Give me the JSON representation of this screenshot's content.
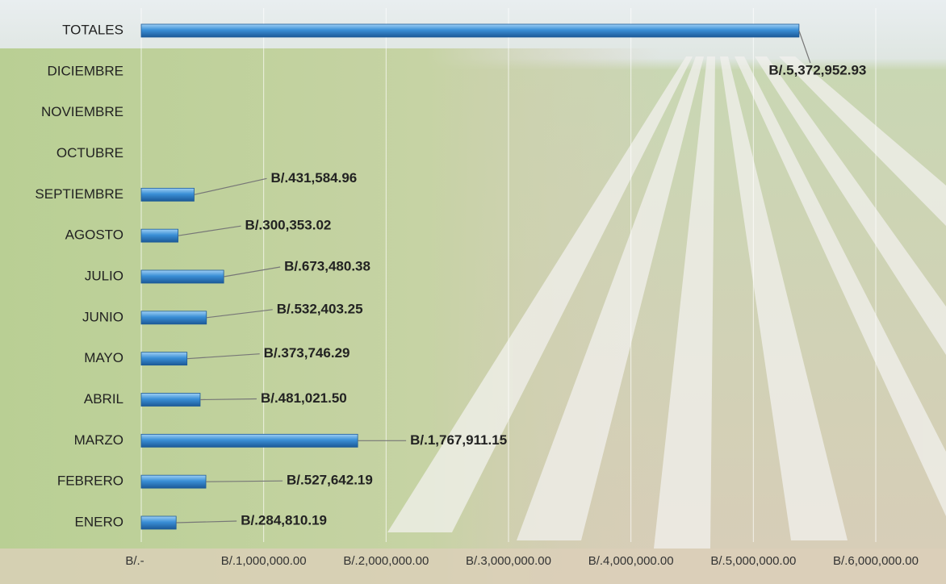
{
  "chart_data": {
    "type": "barh",
    "categories": [
      "ENERO",
      "FEBRERO",
      "MARZO",
      "ABRIL",
      "MAYO",
      "JUNIO",
      "JULIO",
      "AGOSTO",
      "SEPTIEMBRE",
      "OCTUBRE",
      "NOVIEMBRE",
      "DICIEMBRE",
      "TOTALES"
    ],
    "values": [
      284810.19,
      527642.19,
      1767911.15,
      481021.5,
      373746.29,
      532403.25,
      673480.38,
      300353.02,
      431584.96,
      null,
      null,
      null,
      5372952.93
    ],
    "value_labels": [
      "B/.284,810.19",
      "B/.527,642.19",
      "B/.1,767,911.15",
      "B/.481,021.50",
      "B/.373,746.29",
      "B/.532,403.25",
      "B/.673,480.38",
      "B/.300,353.02",
      "B/.431,584.96",
      null,
      null,
      null,
      "B/.5,372,952.93"
    ],
    "color": "#3a8fd6",
    "xlim": [
      0,
      6000000
    ],
    "xticks": [
      {
        "value": 0,
        "label": "B/.-"
      },
      {
        "value": 1000000,
        "label": "B/.1,000,000.00"
      },
      {
        "value": 2000000,
        "label": "B/.2,000,000.00"
      },
      {
        "value": 3000000,
        "label": "B/.3,000,000.00"
      },
      {
        "value": 4000000,
        "label": "B/.4,000,000.00"
      },
      {
        "value": 5000000,
        "label": "B/.5,000,000.00"
      },
      {
        "value": 6000000,
        "label": "B/.6,000,000.00"
      }
    ],
    "grid": true
  }
}
